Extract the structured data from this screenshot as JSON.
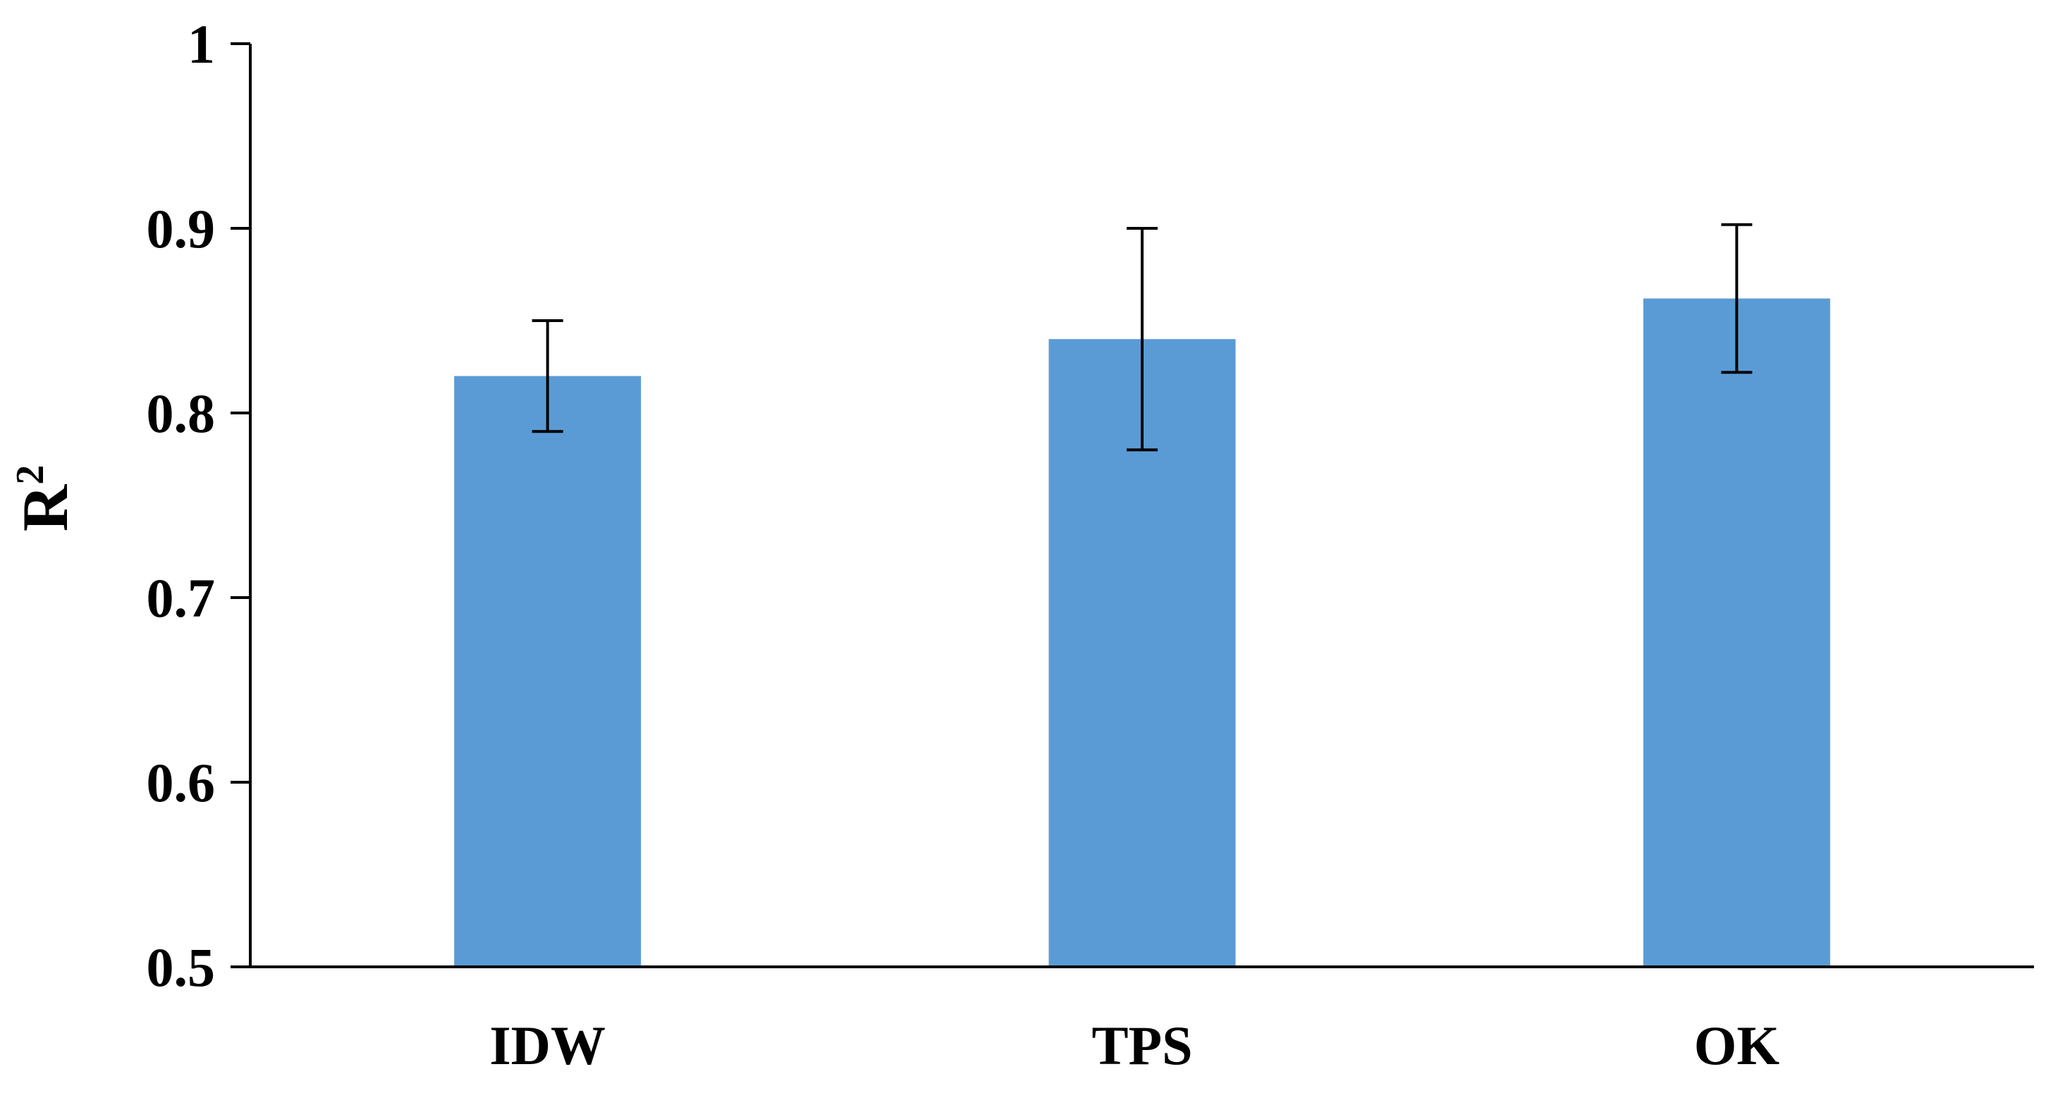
{
  "chart_data": {
    "type": "bar",
    "categories": [
      "IDW",
      "TPS",
      "OK"
    ],
    "values": [
      0.82,
      0.84,
      0.862
    ],
    "error_bars": [
      {
        "low": 0.79,
        "high": 0.85
      },
      {
        "low": 0.78,
        "high": 0.9
      },
      {
        "low": 0.822,
        "high": 0.902
      }
    ],
    "title": "",
    "xlabel": "",
    "ylabel": "R",
    "ylabel_superscript": "2",
    "ylim": [
      0.5,
      1
    ],
    "yticks": [
      0.5,
      0.6,
      0.7,
      0.8,
      0.9,
      1
    ],
    "ytick_labels": [
      "0.5",
      "0.6",
      "0.7",
      "0.8",
      "0.9",
      "1"
    ],
    "grid": false,
    "bar_color": "#5b9bd5",
    "error_bar_color": "#000000",
    "axis_color": "#000000"
  }
}
